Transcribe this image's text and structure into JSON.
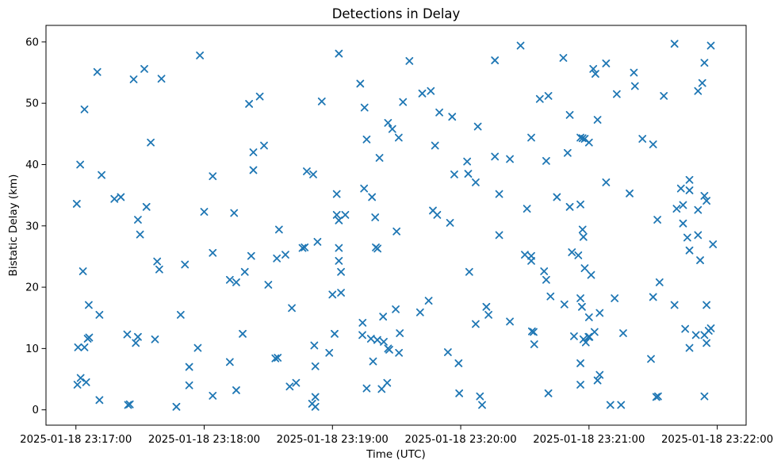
{
  "chart_data": {
    "type": "scatter",
    "title": "Detections in Delay",
    "xlabel": "Time (UTC)",
    "ylabel": "Bistatic Delay (km)",
    "legend": null,
    "grid": false,
    "marker": {
      "shape": "x",
      "color": "#1f77b4",
      "size": 8
    },
    "x_axis": {
      "unit": "seconds after 2025-01-18 23:17:00 UTC",
      "lim": [
        -14.0,
        313.5
      ],
      "ticks": [
        {
          "t": 0,
          "label": "2025-01-18 23:17:00"
        },
        {
          "t": 60,
          "label": "2025-01-18 23:18:00"
        },
        {
          "t": 120,
          "label": "2025-01-18 23:19:00"
        },
        {
          "t": 180,
          "label": "2025-01-18 23:20:00"
        },
        {
          "t": 240,
          "label": "2025-01-18 23:21:00"
        },
        {
          "t": 300,
          "label": "2025-01-18 23:22:00"
        }
      ]
    },
    "y_axis": {
      "lim": [
        -2.5,
        62.7
      ],
      "ticks": [
        0,
        10,
        20,
        30,
        40,
        50,
        60
      ]
    },
    "points": [
      [
        58,
        57.8
      ],
      [
        10,
        55.1
      ],
      [
        32,
        55.6
      ],
      [
        27,
        53.9
      ],
      [
        40,
        54.0
      ],
      [
        4,
        49.0
      ],
      [
        35,
        43.6
      ],
      [
        2,
        40.0
      ],
      [
        12,
        38.3
      ],
      [
        64,
        38.1
      ],
      [
        0.4,
        33.6
      ],
      [
        18,
        34.4
      ],
      [
        21,
        34.7
      ],
      [
        33,
        33.1
      ],
      [
        60,
        32.3
      ],
      [
        29,
        31.0
      ],
      [
        30,
        28.6
      ],
      [
        64,
        25.6
      ],
      [
        38,
        24.2
      ],
      [
        39,
        22.9
      ],
      [
        51,
        23.7
      ],
      [
        3.3,
        22.6
      ],
      [
        6,
        17.1
      ],
      [
        11,
        15.5
      ],
      [
        49,
        15.5
      ],
      [
        24,
        12.3
      ],
      [
        29,
        11.9
      ],
      [
        28,
        10.9
      ],
      [
        37,
        11.5
      ],
      [
        5.5,
        11.6
      ],
      [
        6.2,
        11.8
      ],
      [
        1,
        10.2
      ],
      [
        4,
        10.2
      ],
      [
        57,
        10.1
      ],
      [
        53,
        7.0
      ],
      [
        2.2,
        5.2
      ],
      [
        4.8,
        4.5
      ],
      [
        0.7,
        4.1
      ],
      [
        11,
        1.6
      ],
      [
        24.4,
        0.8
      ],
      [
        25.2,
        0.9
      ],
      [
        47,
        0.5
      ],
      [
        64,
        2.3
      ],
      [
        53,
        4.0
      ],
      [
        123,
        58.1
      ],
      [
        133,
        53.2
      ],
      [
        86,
        51.1
      ],
      [
        81,
        49.9
      ],
      [
        115,
        50.3
      ],
      [
        135,
        49.3
      ],
      [
        146,
        46.8
      ],
      [
        148,
        45.8
      ],
      [
        136,
        44.1
      ],
      [
        142,
        41.1
      ],
      [
        88,
        43.1
      ],
      [
        83,
        42.0
      ],
      [
        83,
        39.1
      ],
      [
        108,
        38.9
      ],
      [
        111,
        38.4
      ],
      [
        122,
        35.2
      ],
      [
        134.8,
        36.1
      ],
      [
        138.5,
        34.7
      ],
      [
        74,
        32.1
      ],
      [
        122,
        31.8
      ],
      [
        126,
        31.8
      ],
      [
        123,
        30.9
      ],
      [
        140,
        31.4
      ],
      [
        95,
        29.4
      ],
      [
        113,
        27.4
      ],
      [
        106,
        26.4
      ],
      [
        107,
        26.5
      ],
      [
        82,
        25.1
      ],
      [
        94,
        24.7
      ],
      [
        98,
        25.3
      ],
      [
        123,
        26.4
      ],
      [
        140.3,
        26.5
      ],
      [
        141.1,
        26.3
      ],
      [
        150,
        29.1
      ],
      [
        123,
        24.3
      ],
      [
        79,
        22.5
      ],
      [
        72,
        21.2
      ],
      [
        75,
        20.8
      ],
      [
        90,
        20.4
      ],
      [
        124,
        22.5
      ],
      [
        120,
        18.8
      ],
      [
        124,
        19.1
      ],
      [
        101,
        16.6
      ],
      [
        134.1,
        14.2
      ],
      [
        143.7,
        15.2
      ],
      [
        149.6,
        16.4
      ],
      [
        78,
        12.4
      ],
      [
        121,
        12.4
      ],
      [
        111.5,
        10.5
      ],
      [
        134,
        12.2
      ],
      [
        138,
        11.6
      ],
      [
        141,
        11.4
      ],
      [
        144,
        11.1
      ],
      [
        146,
        10.0
      ],
      [
        146.6,
        9.8
      ],
      [
        118.5,
        9.3
      ],
      [
        93.3,
        8.4
      ],
      [
        94.4,
        8.5
      ],
      [
        72,
        7.8
      ],
      [
        112,
        7.1
      ],
      [
        139,
        7.9
      ],
      [
        100,
        3.8
      ],
      [
        103,
        4.4
      ],
      [
        75,
        3.2
      ],
      [
        136,
        3.5
      ],
      [
        143,
        3.4
      ],
      [
        145.6,
        4.4
      ],
      [
        112,
        2.1
      ],
      [
        110.5,
        1.0
      ],
      [
        112,
        0.5
      ],
      [
        208,
        59.4
      ],
      [
        196,
        57.0
      ],
      [
        156,
        56.9
      ],
      [
        228,
        57.4
      ],
      [
        162,
        51.6
      ],
      [
        166,
        52.0
      ],
      [
        153,
        50.2
      ],
      [
        217,
        50.7
      ],
      [
        221,
        51.2
      ],
      [
        170,
        48.5
      ],
      [
        176,
        47.8
      ],
      [
        231,
        48.1
      ],
      [
        188,
        46.2
      ],
      [
        151,
        44.4
      ],
      [
        168,
        43.1
      ],
      [
        213,
        44.4
      ],
      [
        230,
        41.9
      ],
      [
        196,
        41.3
      ],
      [
        203,
        40.9
      ],
      [
        220,
        40.6
      ],
      [
        183,
        40.5
      ],
      [
        183.5,
        38.5
      ],
      [
        177,
        38.4
      ],
      [
        187,
        37.1
      ],
      [
        198,
        35.2
      ],
      [
        225,
        34.7
      ],
      [
        231,
        33.1
      ],
      [
        211,
        32.8
      ],
      [
        167,
        32.5
      ],
      [
        169,
        31.8
      ],
      [
        175,
        30.5
      ],
      [
        198,
        28.5
      ],
      [
        210,
        25.3
      ],
      [
        213,
        25.1
      ],
      [
        213,
        24.3
      ],
      [
        232,
        25.7
      ],
      [
        184,
        22.5
      ],
      [
        219,
        22.6
      ],
      [
        220,
        21.2
      ],
      [
        222,
        18.5
      ],
      [
        228.5,
        17.2
      ],
      [
        165,
        17.8
      ],
      [
        161,
        15.9
      ],
      [
        192,
        16.8
      ],
      [
        193,
        15.5
      ],
      [
        187,
        14.0
      ],
      [
        203,
        14.4
      ],
      [
        213.3,
        12.8
      ],
      [
        214.1,
        12.7
      ],
      [
        214.4,
        10.7
      ],
      [
        151.5,
        12.5
      ],
      [
        151.1,
        9.3
      ],
      [
        174,
        9.4
      ],
      [
        179,
        7.6
      ],
      [
        179.3,
        2.7
      ],
      [
        189,
        2.2
      ],
      [
        190,
        0.8
      ],
      [
        221,
        2.7
      ],
      [
        280,
        59.7
      ],
      [
        297,
        59.4
      ],
      [
        248,
        56.5
      ],
      [
        242,
        55.6
      ],
      [
        243,
        54.8
      ],
      [
        294,
        56.6
      ],
      [
        261,
        55.0
      ],
      [
        261.5,
        52.8
      ],
      [
        293,
        53.3
      ],
      [
        291,
        52.0
      ],
      [
        253,
        51.5
      ],
      [
        275,
        51.2
      ],
      [
        244,
        47.3
      ],
      [
        236,
        44.4
      ],
      [
        237,
        44.3
      ],
      [
        238,
        44.2
      ],
      [
        240,
        43.6
      ],
      [
        265,
        44.2
      ],
      [
        270,
        43.3
      ],
      [
        248,
        37.1
      ],
      [
        259,
        35.3
      ],
      [
        287,
        37.5
      ],
      [
        283,
        36.1
      ],
      [
        287,
        35.8
      ],
      [
        294,
        34.9
      ],
      [
        295,
        34.1
      ],
      [
        236,
        33.5
      ],
      [
        281,
        32.8
      ],
      [
        284,
        33.4
      ],
      [
        291,
        32.6
      ],
      [
        272,
        31.0
      ],
      [
        284,
        30.4
      ],
      [
        237,
        29.4
      ],
      [
        237.4,
        28.2
      ],
      [
        235,
        25.2
      ],
      [
        238,
        23.1
      ],
      [
        241,
        22.0
      ],
      [
        286,
        28.1
      ],
      [
        291,
        28.5
      ],
      [
        298,
        27.0
      ],
      [
        287,
        26.0
      ],
      [
        292,
        24.4
      ],
      [
        273,
        20.8
      ],
      [
        236,
        18.2
      ],
      [
        236.7,
        16.8
      ],
      [
        252,
        18.2
      ],
      [
        270,
        18.4
      ],
      [
        280,
        17.1
      ],
      [
        295,
        17.1
      ],
      [
        240,
        15.1
      ],
      [
        245,
        15.8
      ],
      [
        233,
        12.0
      ],
      [
        237.4,
        11.5
      ],
      [
        238.5,
        11.0
      ],
      [
        239.8,
        11.9
      ],
      [
        240.2,
        11.9
      ],
      [
        242.6,
        12.7
      ],
      [
        256,
        12.5
      ],
      [
        285,
        13.2
      ],
      [
        290,
        12.2
      ],
      [
        294,
        12.2
      ],
      [
        296,
        12.9
      ],
      [
        297,
        13.3
      ],
      [
        295,
        10.9
      ],
      [
        287,
        10.1
      ],
      [
        269,
        8.3
      ],
      [
        236,
        7.6
      ],
      [
        245,
        5.7
      ],
      [
        244,
        4.8
      ],
      [
        236,
        4.1
      ],
      [
        271.5,
        2.1
      ],
      [
        272.3,
        2.2
      ],
      [
        250,
        0.8
      ],
      [
        255,
        0.8
      ],
      [
        294,
        2.2
      ]
    ]
  }
}
